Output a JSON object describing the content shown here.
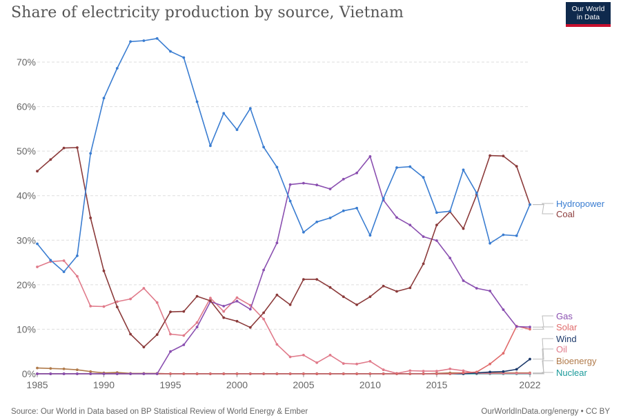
{
  "header": {
    "title": "Share of electricity production by source, Vietnam",
    "logo_line1": "Our World",
    "logo_line2": "in Data"
  },
  "footer": {
    "source": "Source: Our World in Data based on BP Statistical Review of World Energy & Ember",
    "license": "OurWorldInData.org/energy • CC BY"
  },
  "colors": {
    "logo_bg": "#0f2a4d",
    "logo_accent": "#c8102e"
  },
  "chart_data": {
    "type": "line",
    "title": "Share of electricity production by source, Vietnam",
    "xlabel": "",
    "ylabel": "",
    "xlim": [
      1985,
      2022
    ],
    "ylim": [
      0,
      70
    ],
    "grid": true,
    "y_ticks": [
      0,
      10,
      20,
      30,
      40,
      50,
      60,
      70
    ],
    "y_tick_labels": [
      "0%",
      "10%",
      "20%",
      "30%",
      "40%",
      "50%",
      "60%",
      "70%"
    ],
    "x_ticks": [
      1985,
      1990,
      1995,
      2000,
      2005,
      2010,
      2015,
      2022
    ],
    "x_tick_labels": [
      "1985",
      "1990",
      "1995",
      "2000",
      "2005",
      "2010",
      "2015",
      "2022"
    ],
    "legend_placement": "right",
    "x": [
      1985,
      1986,
      1987,
      1988,
      1989,
      1990,
      1991,
      1992,
      1993,
      1994,
      1995,
      1996,
      1997,
      1998,
      1999,
      2000,
      2001,
      2002,
      2003,
      2004,
      2005,
      2006,
      2007,
      2008,
      2009,
      2010,
      2011,
      2012,
      2013,
      2014,
      2015,
      2016,
      2017,
      2018,
      2019,
      2020,
      2021,
      2022
    ],
    "series": [
      {
        "name": "Hydropower",
        "color": "#3a7dd1",
        "values": [
          29.2,
          25.5,
          22.9,
          26.5,
          49.5,
          61.9,
          68.6,
          74.6,
          74.8,
          75.3,
          72.4,
          71.0,
          61.1,
          51.2,
          58.5,
          54.8,
          59.6,
          50.9,
          46.4,
          38.8,
          31.8,
          34.1,
          35.0,
          36.6,
          37.2,
          31.1,
          39.4,
          46.3,
          46.5,
          44.1,
          36.2,
          36.5,
          45.8,
          40.6,
          29.3,
          31.2,
          31.0,
          38.0
        ]
      },
      {
        "name": "Coal",
        "color": "#8b3a3a",
        "values": [
          45.5,
          48.1,
          50.7,
          50.8,
          35.0,
          23.1,
          15.0,
          8.9,
          6.0,
          8.8,
          13.9,
          14.0,
          17.4,
          16.4,
          12.6,
          11.8,
          10.4,
          13.7,
          17.7,
          15.5,
          21.2,
          21.2,
          19.4,
          17.3,
          15.5,
          17.3,
          19.7,
          18.5,
          19.3,
          24.7,
          33.4,
          36.4,
          32.6,
          40.2,
          49.0,
          48.9,
          46.6,
          38.0
        ]
      },
      {
        "name": "Gas",
        "color": "#8a4fb0",
        "values": [
          0,
          0,
          0,
          0,
          0,
          0,
          0,
          0,
          0,
          0,
          5.0,
          6.5,
          10.5,
          16.2,
          15.2,
          16.3,
          14.5,
          23.3,
          29.4,
          42.5,
          42.8,
          42.4,
          41.5,
          43.7,
          45.1,
          48.8,
          39.0,
          35.1,
          33.4,
          30.8,
          29.9,
          26.0,
          20.9,
          19.2,
          18.6,
          14.4,
          10.6,
          10.5
        ]
      },
      {
        "name": "Solar",
        "color": "#e06b6b",
        "values": [
          0,
          0,
          0,
          0,
          0,
          0,
          0,
          0,
          0,
          0,
          0,
          0,
          0,
          0,
          0,
          0,
          0,
          0,
          0,
          0,
          0,
          0,
          0,
          0,
          0,
          0,
          0,
          0,
          0,
          0,
          0,
          0,
          0.2,
          0.4,
          2.2,
          4.6,
          10.7,
          10.0
        ]
      },
      {
        "name": "Wind",
        "color": "#1d3a6b",
        "values": [
          0,
          0,
          0,
          0,
          0,
          0,
          0,
          0,
          0,
          0,
          0,
          0,
          0,
          0,
          0,
          0,
          0,
          0,
          0,
          0,
          0,
          0,
          0,
          0,
          0,
          0,
          0,
          0,
          0,
          0,
          0,
          0,
          0,
          0.2,
          0.4,
          0.5,
          1.0,
          3.3
        ]
      },
      {
        "name": "Oil",
        "color": "#e07a8a",
        "values": [
          24.0,
          25.2,
          25.4,
          21.9,
          15.2,
          15.1,
          16.2,
          16.8,
          19.2,
          16.0,
          8.9,
          8.6,
          11.5,
          17.0,
          14.0,
          17.1,
          15.4,
          12.3,
          6.6,
          3.8,
          4.2,
          2.5,
          4.2,
          2.3,
          2.2,
          2.8,
          0.9,
          0.1,
          0.7,
          0.6,
          0.6,
          1.1,
          0.7,
          0.1,
          0.1,
          0.1,
          0.1,
          0.1
        ]
      },
      {
        "name": "Bioenergy",
        "color": "#b07a4a",
        "values": [
          1.3,
          1.2,
          1.1,
          0.9,
          0.5,
          0.2,
          0.3,
          0.1,
          0.1,
          0.1,
          0,
          0,
          0,
          0,
          0,
          0,
          0,
          0,
          0,
          0,
          0,
          0,
          0,
          0,
          0,
          0,
          0,
          0,
          0,
          0,
          0.1,
          0.2,
          0.2,
          0.3,
          0.2,
          0.2,
          0.2,
          0.2
        ]
      },
      {
        "name": "Nuclear",
        "color": "#1a9a9a",
        "values": [
          0,
          0,
          0,
          0,
          0,
          0,
          0,
          0,
          0,
          0,
          0,
          0,
          0,
          0,
          0,
          0,
          0,
          0,
          0,
          0,
          0,
          0,
          0,
          0,
          0,
          0,
          0,
          0,
          0,
          0,
          0,
          0,
          0,
          0,
          0,
          0,
          0,
          0
        ]
      }
    ]
  }
}
